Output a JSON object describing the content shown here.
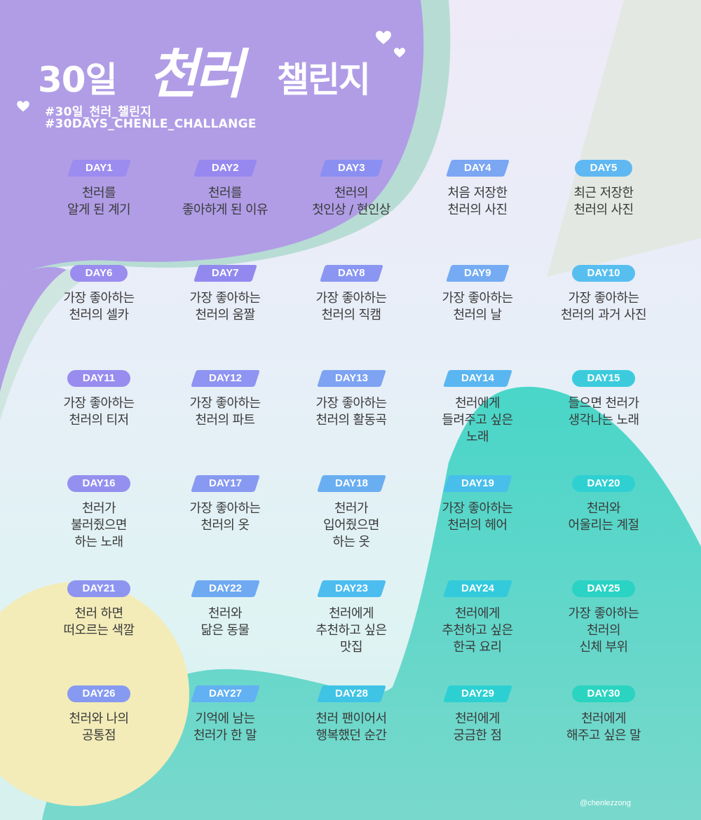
{
  "title": {
    "part1": "30일",
    "part2": "천러",
    "part3": "챌린지"
  },
  "hashtags": [
    "#30일_천러_챌린지",
    "#30DAYS_CHENLE_CHALLANGE"
  ],
  "credit": "@chenlezzong",
  "colors": {
    "purple_blob": "#b09de6",
    "teal_blob": "#5fd6c6",
    "yellow_blob": "#f3ecb8",
    "mint_accent": "#b7dcd4",
    "white_text": "#ffffff",
    "body_text": "#3a3a3a"
  },
  "days": [
    {
      "label": "DAY1",
      "lines": [
        "천러를",
        "알게 된 계기"
      ],
      "color": "#9d8cef",
      "shape": "slant"
    },
    {
      "label": "DAY2",
      "lines": [
        "천러를",
        "좋아하게 된 이유"
      ],
      "color": "#9788ef",
      "shape": "slant"
    },
    {
      "label": "DAY3",
      "lines": [
        "천러의",
        "첫인상 / 현인상"
      ],
      "color": "#8b8ff1",
      "shape": "slant"
    },
    {
      "label": "DAY4",
      "lines": [
        "처음 저장한",
        "천러의 사진"
      ],
      "color": "#7aa6f2",
      "shape": "slant"
    },
    {
      "label": "DAY5",
      "lines": [
        "최근 저장한",
        "천러의 사진"
      ],
      "color": "#5fb8f2",
      "shape": "pill"
    },
    {
      "label": "DAY6",
      "lines": [
        "가장 좋아하는",
        "천러의 셀카"
      ],
      "color": "#9b8cef",
      "shape": "pill"
    },
    {
      "label": "DAY7",
      "lines": [
        "가장 좋아하는",
        "천러의 움짤"
      ],
      "color": "#9289ef",
      "shape": "slant"
    },
    {
      "label": "DAY8",
      "lines": [
        "가장 좋아하는",
        "천러의 직캠"
      ],
      "color": "#8a96f2",
      "shape": "slant"
    },
    {
      "label": "DAY9",
      "lines": [
        "가장 좋아하는",
        "천러의 날"
      ],
      "color": "#74abf3",
      "shape": "slant"
    },
    {
      "label": "DAY10",
      "lines": [
        "가장 좋아하는",
        "천러의 과거 사진"
      ],
      "color": "#57bff0",
      "shape": "pill"
    },
    {
      "label": "DAY11",
      "lines": [
        "가장 좋아하는",
        "천러의 티저"
      ],
      "color": "#998cef",
      "shape": "pill"
    },
    {
      "label": "DAY12",
      "lines": [
        "가장 좋아하는",
        "천러의 파트"
      ],
      "color": "#8f93f1",
      "shape": "slant"
    },
    {
      "label": "DAY13",
      "lines": [
        "가장 좋아하는",
        "천러의 활동곡"
      ],
      "color": "#7ea3f2",
      "shape": "slant"
    },
    {
      "label": "DAY14",
      "lines": [
        "천러에게",
        "들려주고 싶은",
        "노래"
      ],
      "color": "#5ab6f0",
      "shape": "slant"
    },
    {
      "label": "DAY15",
      "lines": [
        "들으면 천러가",
        "생각나는 노래"
      ],
      "color": "#3ccbdd",
      "shape": "pill"
    },
    {
      "label": "DAY16",
      "lines": [
        "천러가",
        "불러줬으면",
        "하는 노래"
      ],
      "color": "#9490f0",
      "shape": "pill"
    },
    {
      "label": "DAY17",
      "lines": [
        "가장 좋아하는",
        "천러의 옷"
      ],
      "color": "#8899f1",
      "shape": "slant"
    },
    {
      "label": "DAY18",
      "lines": [
        "천러가",
        "입어줬으면",
        "하는 옷"
      ],
      "color": "#6aaef2",
      "shape": "slant"
    },
    {
      "label": "DAY19",
      "lines": [
        "가장 좋아하는",
        "천러의 헤어"
      ],
      "color": "#47bfea",
      "shape": "slant"
    },
    {
      "label": "DAY20",
      "lines": [
        "천러와",
        "어울리는 계절"
      ],
      "color": "#2fd0d2",
      "shape": "pill"
    },
    {
      "label": "DAY21",
      "lines": [
        "천러 하면",
        "떠오르는 색깔"
      ],
      "color": "#8e95f1",
      "shape": "pill"
    },
    {
      "label": "DAY22",
      "lines": [
        "천러와",
        "닮은 동물"
      ],
      "color": "#6fa9f2",
      "shape": "slant"
    },
    {
      "label": "DAY23",
      "lines": [
        "천러에게",
        "추천하고 싶은",
        "맛집"
      ],
      "color": "#4cbdee",
      "shape": "slant"
    },
    {
      "label": "DAY24",
      "lines": [
        "천러에게",
        "추천하고 싶은",
        "한국 요리"
      ],
      "color": "#33cadc",
      "shape": "slant"
    },
    {
      "label": "DAY25",
      "lines": [
        "가장 좋아하는",
        "천러의",
        "신체 부위"
      ],
      "color": "#2ad3c4",
      "shape": "pill"
    },
    {
      "label": "DAY26",
      "lines": [
        "천러와 나의",
        "공통점"
      ],
      "color": "#879af1",
      "shape": "pill"
    },
    {
      "label": "DAY27",
      "lines": [
        "기억에 남는",
        "천러가 한 말"
      ],
      "color": "#62b1f2",
      "shape": "slant"
    },
    {
      "label": "DAY28",
      "lines": [
        "천러 팬이어서",
        "행복했던 순간"
      ],
      "color": "#3fc4e6",
      "shape": "slant"
    },
    {
      "label": "DAY29",
      "lines": [
        "천러에게",
        "궁금한 점"
      ],
      "color": "#2dd0d2",
      "shape": "slant"
    },
    {
      "label": "DAY30",
      "lines": [
        "천러에게",
        "해주고 싶은 말"
      ],
      "color": "#2ad4c0",
      "shape": "pill"
    }
  ]
}
